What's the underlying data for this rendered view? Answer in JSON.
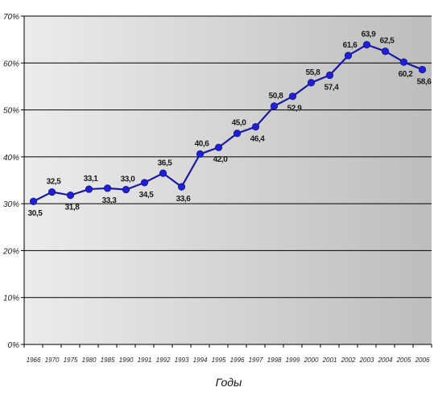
{
  "chart_data": {
    "type": "line",
    "title": "",
    "xlabel": "Годы",
    "ylabel": "",
    "ylim": [
      0,
      70
    ],
    "yticks": [
      "0%",
      "10%",
      "20%",
      "30%",
      "40%",
      "50%",
      "60%",
      "70%"
    ],
    "grid": true,
    "categories": [
      "1966",
      "1970",
      "1975",
      "1980",
      "1985",
      "1990",
      "1991",
      "1992",
      "1993",
      "1994",
      "1995",
      "1996",
      "1997",
      "1998",
      "1999",
      "2000",
      "2001",
      "2002",
      "2003",
      "2004",
      "2005",
      "2006"
    ],
    "values": [
      30.5,
      32.5,
      31.8,
      33.1,
      33.3,
      33.0,
      34.5,
      36.5,
      33.6,
      40.6,
      42.0,
      45.0,
      46.4,
      50.8,
      52.9,
      55.8,
      57.4,
      61.6,
      63.9,
      62.5,
      60.2,
      58.6
    ],
    "data_labels": [
      "30,5",
      "32,5",
      "31,8",
      "33,1",
      "33,3",
      "33,0",
      "34,5",
      "36,5",
      "33,6",
      "40,6",
      "42,0",
      "45,0",
      "46,4",
      "50,8",
      "52,9",
      "55,8",
      "57,4",
      "61,6",
      "63,9",
      "62,5",
      "60,2",
      "58,6"
    ],
    "line_color": "#1a1aa6",
    "marker_color": "#1f1fd6"
  }
}
